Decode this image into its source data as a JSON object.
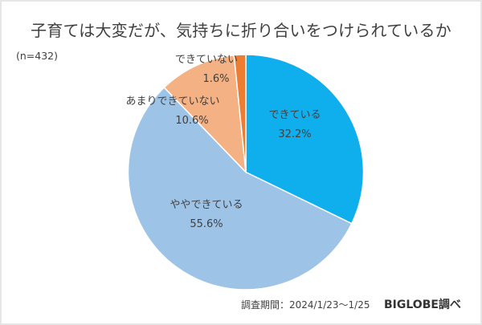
{
  "header": {
    "title": "子育ては大変だが、気持ちに折り合いをつけられているか",
    "sample_size": "(n=432)"
  },
  "footer": {
    "period": "調査期間：2024/1/23～1/25",
    "source": "BIGLOBE調べ"
  },
  "chart_data": {
    "type": "pie",
    "title": "子育ては大変だが、気持ちに折り合いをつけられているか",
    "subtitle": "(n=432)",
    "categories": [
      "できている",
      "ややできている",
      "あまりできていない",
      "できていない"
    ],
    "values": [
      32.2,
      55.6,
      10.6,
      1.6
    ],
    "unit": "%",
    "colors": [
      "#0FAEEC",
      "#9DC3E6",
      "#F4B183",
      "#ED7D31"
    ],
    "start_angle": "12 o'clock, clockwise",
    "labels": [
      {
        "name": "できている",
        "value": "32.2%"
      },
      {
        "name": "ややできている",
        "value": "55.6%"
      },
      {
        "name": "あまりできていない",
        "value": "10.6%"
      },
      {
        "name": "できていない",
        "value": "1.6%"
      }
    ],
    "legend": "none (data labels on slices)",
    "annotations": [
      "調査期間：2024/1/23～1/25",
      "BIGLOBE調べ"
    ]
  }
}
